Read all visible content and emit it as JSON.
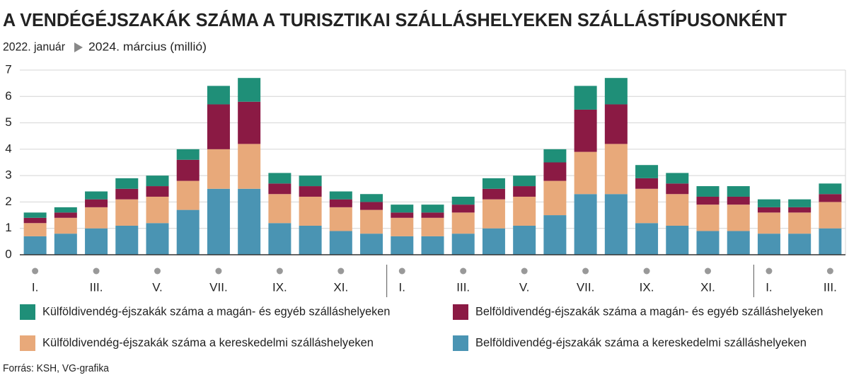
{
  "chart_data": {
    "type": "stacked-bar",
    "title": "A VENDÉGÉJSZAKÁK SZÁMA A TURISZTIKAI SZÁLLÁSHELYEKEN SZÁLLÁSTÍPUSONKÉNT",
    "subtitle": [
      "2022. január",
      "2024. március (millió)"
    ],
    "source": "Forrás: KSH, VG-grafika",
    "categories": [
      "I.",
      null,
      "III.",
      null,
      "V.",
      null,
      "VII.",
      null,
      "IX.",
      null,
      "XI.",
      null,
      "I.",
      null,
      "III.",
      null,
      "V.",
      null,
      "VII.",
      null,
      "IX.",
      null,
      "XI.",
      null,
      "I.",
      null,
      "III."
    ],
    "series": [
      {
        "name": "Belföldivendég-éjszakák száma a kereskedelmi szálláshelyeken",
        "color": "#4a94b3",
        "values": [
          0.7,
          0.8,
          1.0,
          1.1,
          1.2,
          1.7,
          2.5,
          2.5,
          1.2,
          1.1,
          0.9,
          0.8,
          0.7,
          0.7,
          0.8,
          1.0,
          1.1,
          1.5,
          2.3,
          2.3,
          1.2,
          1.1,
          0.9,
          0.9,
          0.8,
          0.8,
          1.0
        ]
      },
      {
        "name": "Külföldivendég-éjszakák száma a kereskedelmi szálláshelyeken",
        "color": "#e8a97a",
        "values": [
          0.5,
          0.6,
          0.8,
          1.0,
          1.0,
          1.1,
          1.5,
          1.7,
          1.1,
          1.1,
          0.9,
          0.9,
          0.7,
          0.7,
          0.8,
          1.1,
          1.1,
          1.3,
          1.6,
          1.9,
          1.3,
          1.2,
          1.0,
          1.0,
          0.8,
          0.8,
          1.0
        ]
      },
      {
        "name": "Belföldivendég-éjszakák száma a magán- és egyéb szálláshelyeken",
        "color": "#8b1a44",
        "values": [
          0.2,
          0.2,
          0.3,
          0.4,
          0.4,
          0.8,
          1.7,
          1.6,
          0.4,
          0.4,
          0.3,
          0.3,
          0.2,
          0.2,
          0.3,
          0.4,
          0.4,
          0.7,
          1.6,
          1.5,
          0.4,
          0.4,
          0.3,
          0.3,
          0.2,
          0.2,
          0.3
        ]
      },
      {
        "name": "Külföldivendég-éjszakák száma a magán- és egyéb szálláshelyeken",
        "color": "#1f8f78",
        "values": [
          0.2,
          0.2,
          0.3,
          0.4,
          0.4,
          0.4,
          0.7,
          0.9,
          0.4,
          0.4,
          0.3,
          0.3,
          0.3,
          0.3,
          0.3,
          0.4,
          0.4,
          0.5,
          0.9,
          1.0,
          0.5,
          0.4,
          0.4,
          0.4,
          0.3,
          0.3,
          0.4
        ]
      }
    ],
    "ylim": [
      0,
      7
    ],
    "yticks": [
      0,
      1,
      2,
      3,
      4,
      5,
      6,
      7
    ],
    "grid": true
  }
}
